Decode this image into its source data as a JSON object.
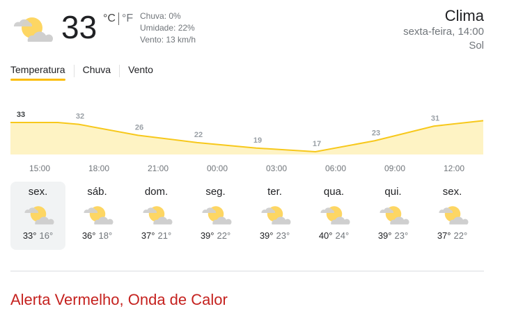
{
  "current": {
    "temperature": "33",
    "unit_c": "°C",
    "unit_f": "°F",
    "icon": "partly-cloudy-icon",
    "precipitation": "Chuva: 0%",
    "humidity": "Umidade: 22%",
    "wind": "Vento: 13 km/h"
  },
  "header": {
    "title": "Clima",
    "datetime": "sexta-feira, 14:00",
    "condition": "Sol"
  },
  "tabs": [
    {
      "label": "Temperatura",
      "active": true
    },
    {
      "label": "Chuva",
      "active": false
    },
    {
      "label": "Vento",
      "active": false
    }
  ],
  "colors": {
    "line": "#f7c81b",
    "fill": "#fef3c4",
    "tab_indicator": "#fbbc04",
    "alert": "#c5221f"
  },
  "chart_data": {
    "type": "area",
    "categories": [
      "15:00",
      "18:00",
      "21:00",
      "00:00",
      "03:00",
      "06:00",
      "09:00",
      "12:00"
    ],
    "values": [
      33,
      32,
      26,
      22,
      19,
      17,
      23,
      31
    ],
    "value_labels": [
      "33",
      "32",
      "26",
      "22",
      "19",
      "17",
      "23",
      "31"
    ]
  },
  "forecast": [
    {
      "day": "sex.",
      "high": "33°",
      "low": "16°",
      "selected": true
    },
    {
      "day": "sáb.",
      "high": "36°",
      "low": "18°"
    },
    {
      "day": "dom.",
      "high": "37°",
      "low": "21°"
    },
    {
      "day": "seg.",
      "high": "39°",
      "low": "22°"
    },
    {
      "day": "ter.",
      "high": "39°",
      "low": "23°"
    },
    {
      "day": "qua.",
      "high": "40°",
      "low": "24°"
    },
    {
      "day": "qui.",
      "high": "39°",
      "low": "23°"
    },
    {
      "day": "sex.",
      "high": "37°",
      "low": "22°"
    }
  ],
  "alert": {
    "title": "Alerta Vermelho, Onda de Calor"
  }
}
